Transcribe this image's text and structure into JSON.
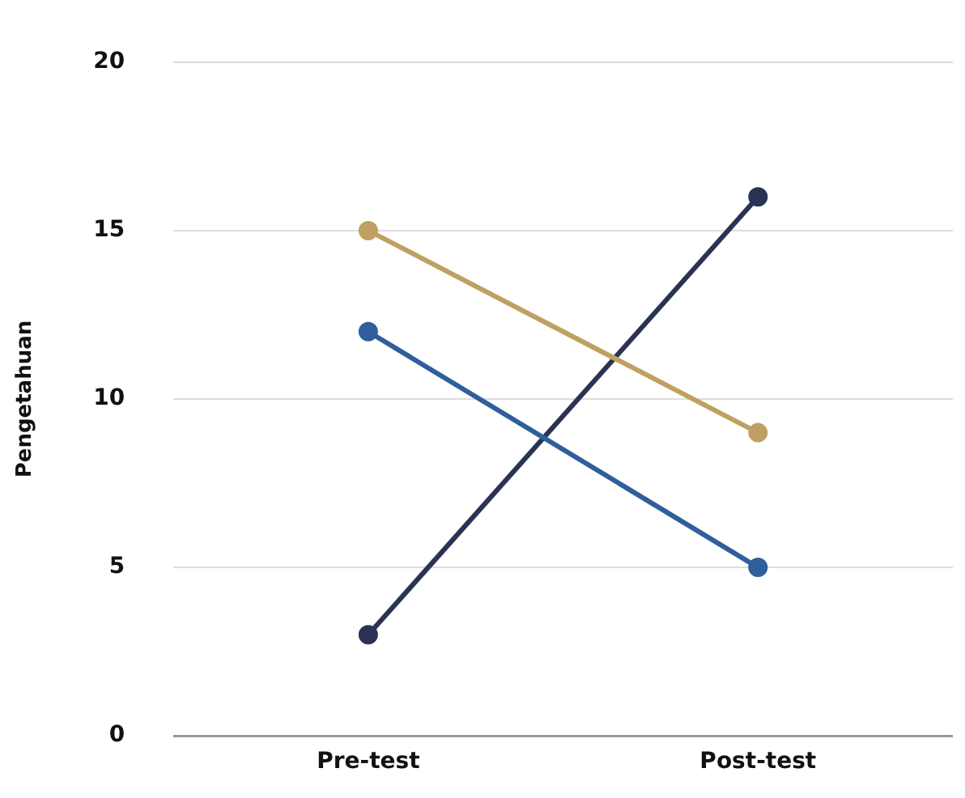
{
  "chart_data": {
    "type": "line",
    "ylabel": "Pengetahuan",
    "categories": [
      "Pre-test",
      "Post-test"
    ],
    "series": [
      {
        "color": "#c0a062",
        "values": [
          15,
          9
        ]
      },
      {
        "color": "#2f5f9b",
        "values": [
          12,
          5
        ]
      },
      {
        "color": "#2a3354",
        "values": [
          3,
          16
        ]
      }
    ],
    "ylim": [
      0,
      20
    ],
    "yticks": [
      0,
      5,
      10,
      15,
      20
    ],
    "grid": "y",
    "legend": false,
    "marker": "circle"
  }
}
